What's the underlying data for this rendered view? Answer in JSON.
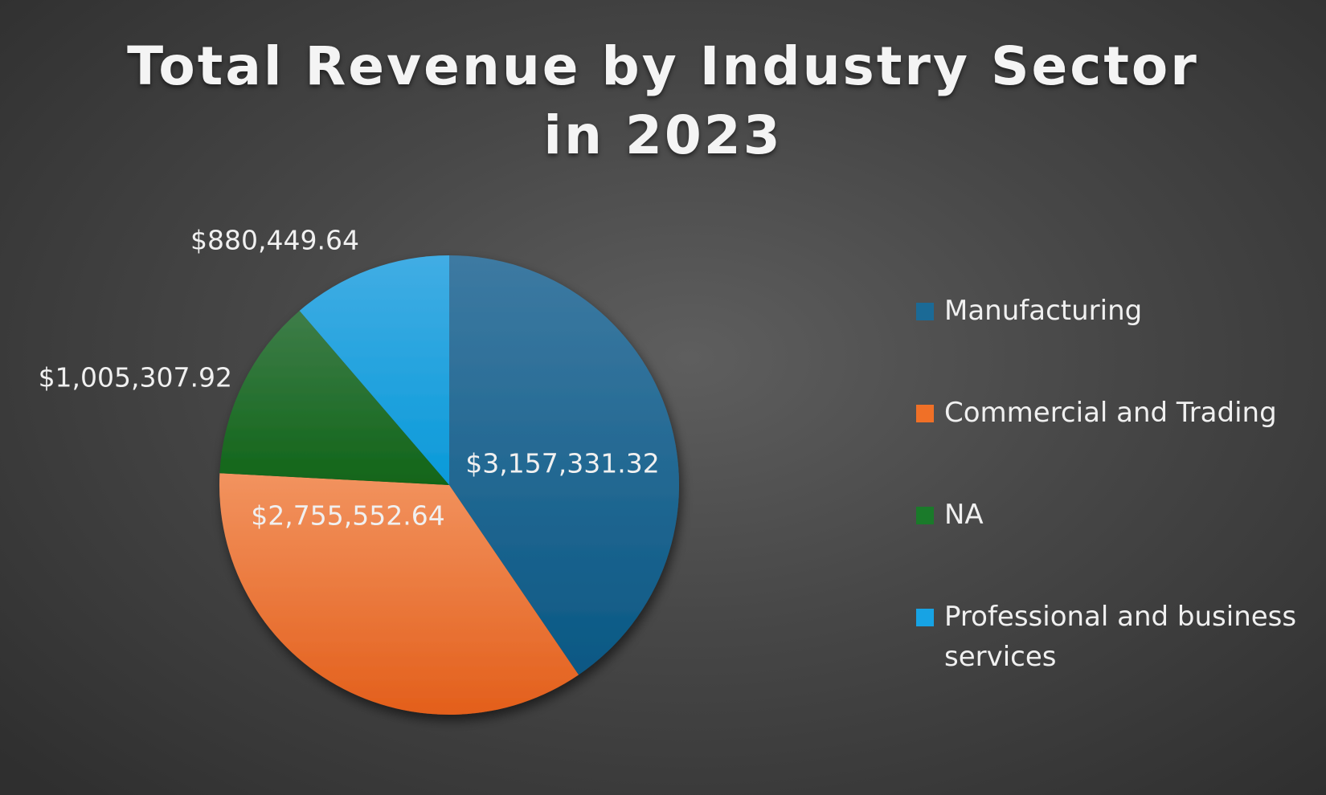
{
  "chart_data": {
    "type": "pie",
    "title": "Total Revenue by Industry Sector in 2023",
    "categories": [
      "Manufacturing",
      "Commercial and Trading",
      "NA",
      "Professional and business services"
    ],
    "values": [
      3157331.32,
      2755552.64,
      1005307.92,
      880449.64
    ],
    "data_labels": [
      "$3,157,331.32",
      "$2,755,552.64",
      "$1,005,307.92",
      "$880,449.64"
    ],
    "colors": [
      "#1b6a96",
      "#f07027",
      "#1a7a2a",
      "#17a3e4"
    ],
    "legend_position": "right",
    "start_angle": "12 o'clock",
    "direction": "clockwise"
  }
}
